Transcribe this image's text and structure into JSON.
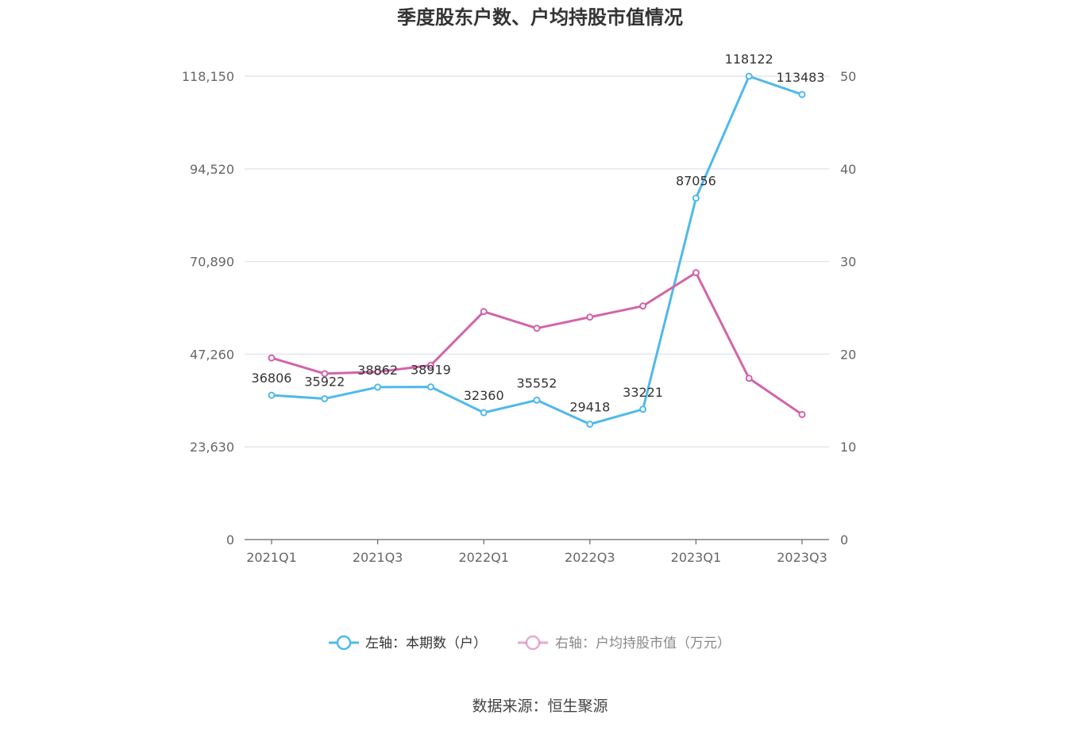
{
  "chart_data": {
    "type": "line",
    "title": "季度股东户数、户均持股市值情况",
    "categories": [
      "2021Q1",
      "2021Q2",
      "2021Q3",
      "2021Q4",
      "2022Q1",
      "2022Q2",
      "2022Q3",
      "2022Q4",
      "2023Q1",
      "2023Q2",
      "2023Q3"
    ],
    "x_tick_labels": [
      "2021Q1",
      "2021Q3",
      "2022Q1",
      "2022Q3",
      "2023Q1",
      "2023Q3"
    ],
    "y_left": {
      "ticks": [
        0,
        23630,
        47260,
        70890,
        94520,
        118150
      ],
      "tick_labels": [
        "0",
        "23,630",
        "47,260",
        "70,890",
        "94,520",
        "118,150"
      ],
      "ylim": [
        0,
        118150
      ]
    },
    "y_right": {
      "ticks": [
        0,
        10,
        20,
        30,
        40,
        50
      ],
      "tick_labels": [
        "0",
        "10",
        "20",
        "30",
        "40",
        "50"
      ],
      "ylim": [
        0,
        50
      ]
    },
    "series": [
      {
        "name": "左轴：本期数（户）",
        "axis": "left",
        "color": "#4fb9ec",
        "values": [
          36806,
          35922,
          38862,
          38919,
          32360,
          35552,
          29418,
          33221,
          87056,
          118122,
          113483
        ],
        "labels": [
          "36806",
          "35922",
          "38862",
          "38919",
          "32360",
          "35552",
          "29418",
          "33221",
          "87056",
          "118122",
          "113483"
        ]
      },
      {
        "name": "右轴：户均持股市值（万元）",
        "axis": "right",
        "color": "#d264aa",
        "values": [
          19.6,
          17.9,
          18.1,
          18.8,
          24.6,
          22.8,
          24.0,
          25.2,
          28.8,
          17.4,
          13.5
        ]
      }
    ],
    "grid": true,
    "legend_position": "bottom"
  },
  "source": "数据来源：恒生聚源"
}
